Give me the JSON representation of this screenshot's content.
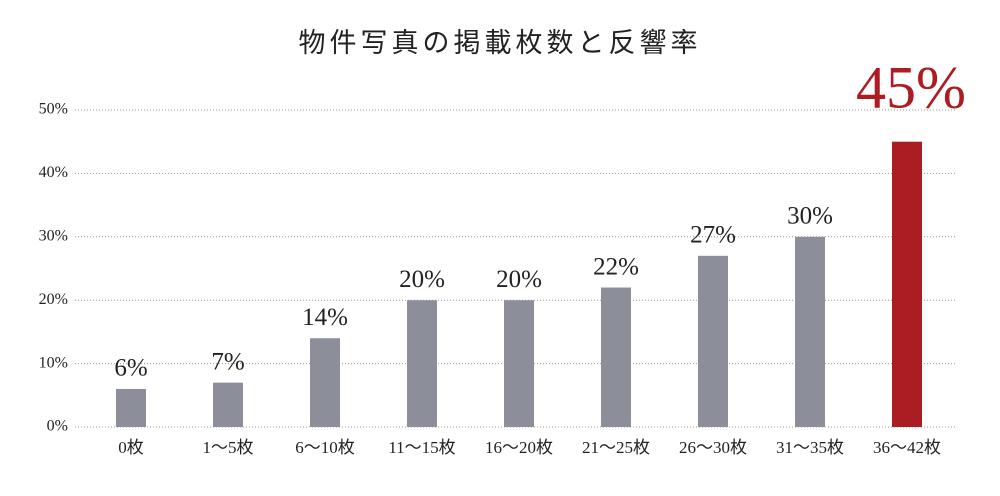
{
  "chart_data": {
    "type": "bar",
    "title": "物件写真の掲載枚数と反響率",
    "categories": [
      "0枚",
      "1～5枚",
      "6～10枚",
      "11～15枚",
      "16～20枚",
      "21～25枚",
      "26～30枚",
      "31～35枚",
      "36～42枚"
    ],
    "values": [
      6,
      7,
      14,
      20,
      20,
      22,
      27,
      30,
      45
    ],
    "value_labels": [
      "6%",
      "7%",
      "14%",
      "20%",
      "20%",
      "22%",
      "27%",
      "30%",
      "45%"
    ],
    "colors": [
      "#8c8e99",
      "#8c8e99",
      "#8c8e99",
      "#8c8e99",
      "#8c8e99",
      "#8c8e99",
      "#8c8e99",
      "#8c8e99",
      "#ac1c23"
    ],
    "ylim": [
      0,
      50
    ],
    "yticks": [
      {
        "value": 0,
        "label": "0%"
      },
      {
        "value": 10,
        "label": "10%"
      },
      {
        "value": 20,
        "label": "20%"
      },
      {
        "value": 30,
        "label": "30%"
      },
      {
        "value": 40,
        "label": "40%"
      },
      {
        "value": 50,
        "label": "50%"
      }
    ],
    "grid": true
  }
}
